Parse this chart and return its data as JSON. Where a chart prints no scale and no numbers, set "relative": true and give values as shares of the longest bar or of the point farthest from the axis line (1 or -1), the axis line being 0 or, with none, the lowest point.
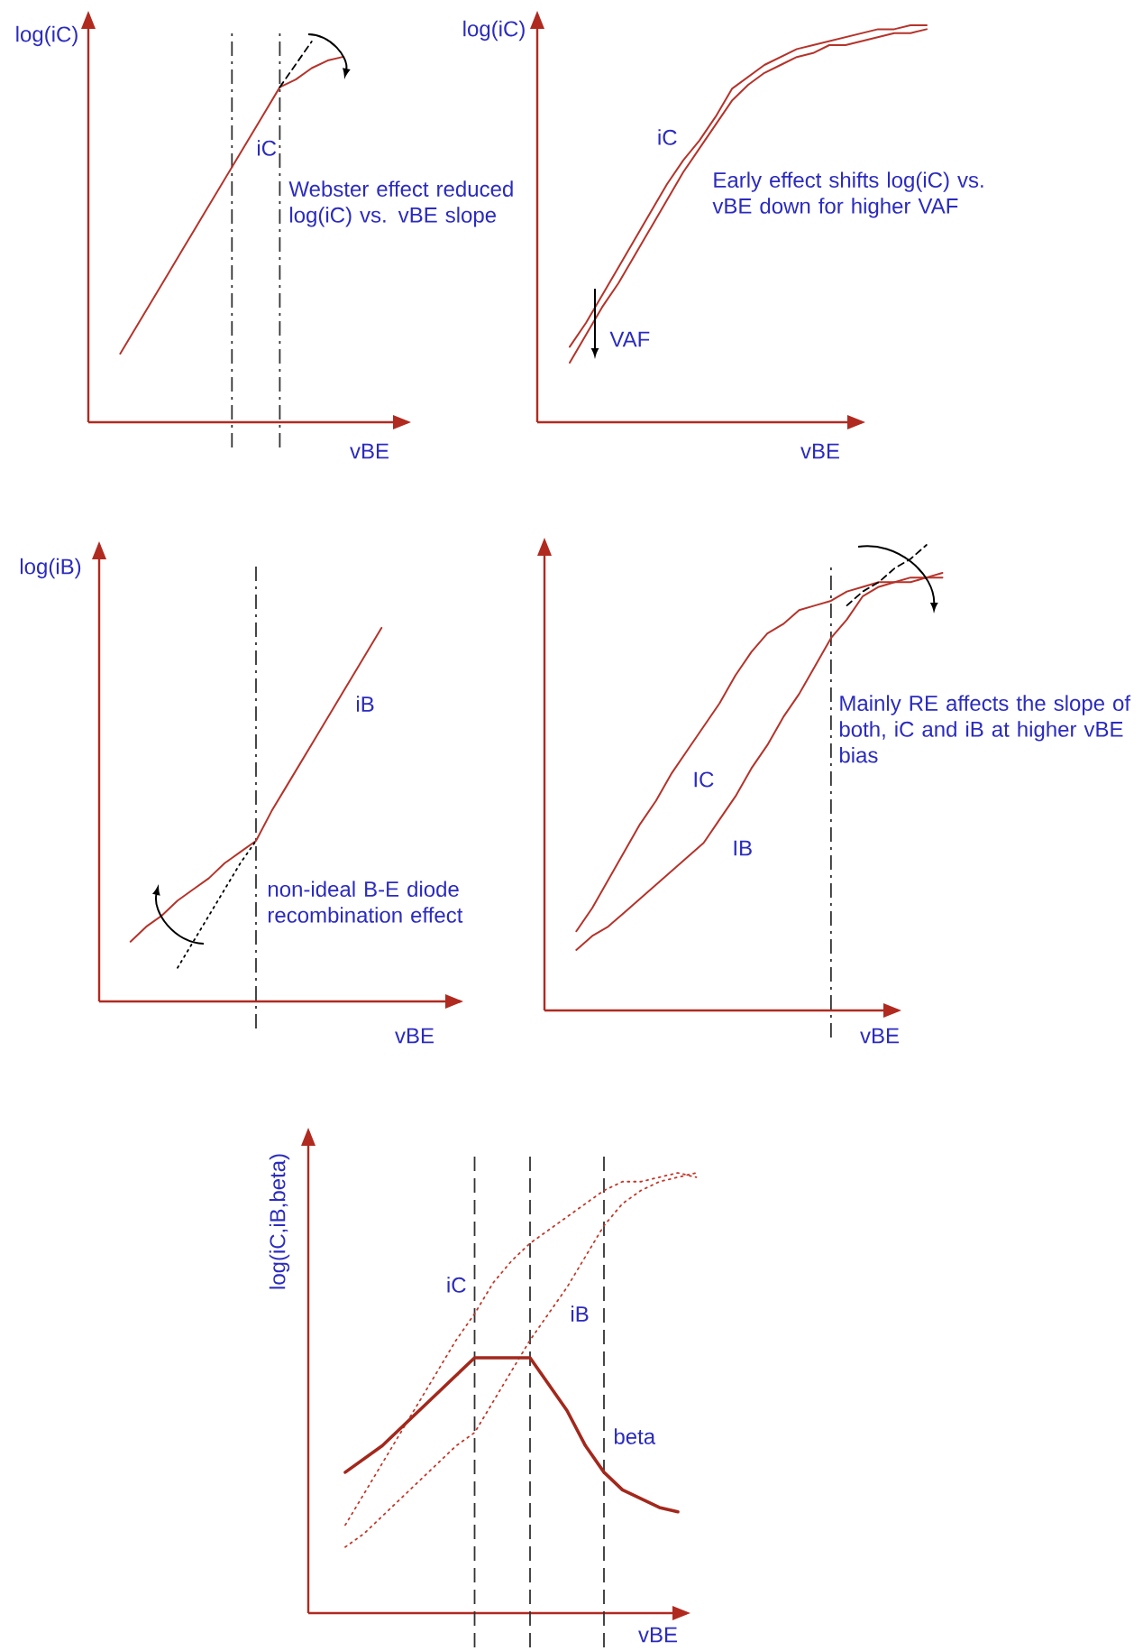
{
  "chart_data": [
    {
      "type": "line",
      "relative": true,
      "marker": "none",
      "xlabel": "vBE",
      "ylabel": "log(iC)",
      "categories": [
        null,
        null,
        null,
        null,
        null,
        null,
        null,
        null,
        null,
        null,
        null,
        null,
        null,
        null,
        null,
        null,
        null,
        null,
        null,
        null,
        null
      ],
      "series": [
        {
          "name": "iC",
          "color": "#b5332a",
          "line_style": "solid",
          "values": [
            null,
            null,
            0.18,
            0.25,
            0.32,
            0.39,
            0.46,
            0.53,
            0.6,
            0.67,
            0.74,
            0.81,
            0.88,
            0.9,
            0.93,
            0.95,
            0.96,
            null,
            null,
            null,
            null
          ]
        },
        {
          "color": "#000000",
          "line_style": "dashed",
          "values": [
            null,
            null,
            null,
            null,
            null,
            null,
            null,
            null,
            null,
            null,
            null,
            null,
            0.88,
            0.94,
            1.0,
            null,
            null,
            null,
            null,
            null,
            null
          ]
        }
      ],
      "annotations": [
        "Webster effect reduced log(iC) vs. vBE slope"
      ]
    },
    {
      "type": "line",
      "relative": true,
      "marker": "none",
      "xlabel": "vBE",
      "ylabel": "log(iC)",
      "categories": [
        null,
        null,
        null,
        null,
        null,
        null,
        null,
        null,
        null,
        null,
        null,
        null,
        null,
        null,
        null,
        null,
        null,
        null,
        null,
        null,
        null,
        null,
        null,
        null,
        null
      ],
      "series": [
        {
          "name": "iC",
          "color": "#b5332a",
          "line_style": "solid",
          "values": [
            null,
            null,
            0.19,
            0.25,
            0.32,
            0.39,
            0.46,
            0.53,
            0.6,
            0.66,
            0.71,
            0.77,
            0.84,
            0.87,
            0.9,
            0.92,
            0.94,
            0.95,
            0.96,
            0.97,
            0.98,
            0.99,
            0.99,
            1.0,
            1.0
          ]
        },
        {
          "color": "#b5332a",
          "line_style": "solid",
          "values": [
            null,
            null,
            0.15,
            0.22,
            0.29,
            0.35,
            0.42,
            0.49,
            0.56,
            0.63,
            0.69,
            0.75,
            0.81,
            0.85,
            0.88,
            0.9,
            0.92,
            0.93,
            0.95,
            0.95,
            0.96,
            0.97,
            0.98,
            0.98,
            0.99
          ]
        }
      ],
      "annotations": [
        "Early effect shifts log(iC) vs. vBE down for higher VAF",
        "VAF"
      ]
    },
    {
      "type": "line",
      "relative": true,
      "marker": "none",
      "xlabel": "vBE",
      "ylabel": "log(iB)",
      "categories": [
        null,
        null,
        null,
        null,
        null,
        null,
        null,
        null,
        null,
        null,
        null,
        null,
        null,
        null,
        null,
        null,
        null,
        null,
        null,
        null,
        null,
        null,
        null,
        null
      ],
      "series": [
        {
          "name": "iB",
          "color": "#b5332a",
          "line_style": "solid",
          "values": [
            null,
            null,
            0.16,
            0.2,
            0.23,
            0.27,
            0.3,
            0.33,
            0.37,
            0.4,
            0.43,
            0.51,
            0.58,
            0.65,
            0.72,
            0.79,
            0.86,
            0.93,
            1.0,
            null,
            null,
            null,
            null,
            null
          ]
        },
        {
          "color": "#000000",
          "line_style": "dotted",
          "values": [
            null,
            null,
            null,
            null,
            null,
            0.09,
            0.16,
            0.23,
            0.3,
            0.37,
            0.43,
            null,
            null,
            null,
            null,
            null,
            null,
            null,
            null,
            null,
            null,
            null,
            null,
            null
          ]
        }
      ],
      "annotations": [
        "non-ideal B-E diode recombination effect"
      ]
    },
    {
      "type": "line",
      "relative": true,
      "marker": "none",
      "xlabel": "vBE",
      "categories": [
        null,
        null,
        null,
        null,
        null,
        null,
        null,
        null,
        null,
        null,
        null,
        null,
        null,
        null,
        null,
        null,
        null,
        null,
        null,
        null,
        null,
        null,
        null,
        null,
        null,
        null
      ],
      "series": [
        {
          "name": "IC",
          "color": "#b5332a",
          "line_style": "solid",
          "values": [
            null,
            null,
            0.17,
            0.22,
            0.28,
            0.34,
            0.4,
            0.45,
            0.51,
            0.56,
            0.61,
            0.66,
            0.72,
            0.77,
            0.81,
            0.83,
            0.86,
            0.87,
            0.88,
            0.9,
            0.91,
            0.92,
            0.92,
            0.93,
            0.93,
            0.94
          ]
        },
        {
          "name": "IB",
          "color": "#b5332a",
          "line_style": "solid",
          "values": [
            null,
            null,
            0.13,
            0.16,
            0.18,
            0.21,
            0.24,
            0.27,
            0.3,
            0.33,
            0.36,
            0.41,
            0.46,
            0.52,
            0.57,
            0.63,
            0.68,
            0.74,
            0.8,
            0.84,
            0.89,
            0.91,
            0.92,
            0.92,
            0.93,
            0.93
          ]
        },
        {
          "color": "#000000",
          "line_style": "dashed",
          "values": [
            null,
            null,
            null,
            null,
            null,
            null,
            null,
            null,
            null,
            null,
            null,
            null,
            null,
            null,
            null,
            null,
            null,
            null,
            null,
            0.87,
            0.9,
            0.92,
            0.95,
            0.97,
            1.0,
            null
          ]
        }
      ],
      "annotations": [
        "Mainly RE affects the slope of both, iC and iB at higher vBE bias"
      ]
    },
    {
      "type": "line",
      "relative": true,
      "marker": "none",
      "grid": "x",
      "xlabel": "vBE",
      "ylabel": "log(iC,iB,beta)",
      "categories": [
        null,
        null,
        null,
        null,
        null,
        null,
        null,
        null,
        null,
        null,
        null,
        null,
        null,
        null,
        null,
        null,
        null,
        null,
        null,
        null,
        null,
        null
      ],
      "series": [
        {
          "name": "iC",
          "color": "#c0392b",
          "line_style": "dotted",
          "values": [
            null,
            null,
            0.2,
            0.27,
            0.34,
            0.41,
            0.48,
            0.55,
            0.62,
            0.68,
            0.75,
            0.8,
            0.84,
            0.87,
            0.9,
            0.93,
            0.96,
            0.98,
            0.98,
            0.99,
            1.0,
            0.99
          ]
        },
        {
          "name": "iB",
          "color": "#c0392b",
          "line_style": "dotted",
          "values": [
            null,
            null,
            0.15,
            0.18,
            0.22,
            0.26,
            0.3,
            0.34,
            0.38,
            0.41,
            0.48,
            0.55,
            0.62,
            0.68,
            0.74,
            0.81,
            0.88,
            0.93,
            0.96,
            0.98,
            0.99,
            1.0
          ]
        },
        {
          "name": "beta",
          "color": "#a3281c",
          "line_style": "solid",
          "values": [
            null,
            null,
            0.32,
            0.35,
            0.38,
            0.42,
            0.46,
            0.5,
            0.54,
            0.58,
            0.58,
            0.58,
            0.58,
            0.52,
            0.46,
            0.38,
            0.32,
            0.28,
            0.26,
            0.24,
            0.23,
            null
          ]
        }
      ]
    }
  ]
}
